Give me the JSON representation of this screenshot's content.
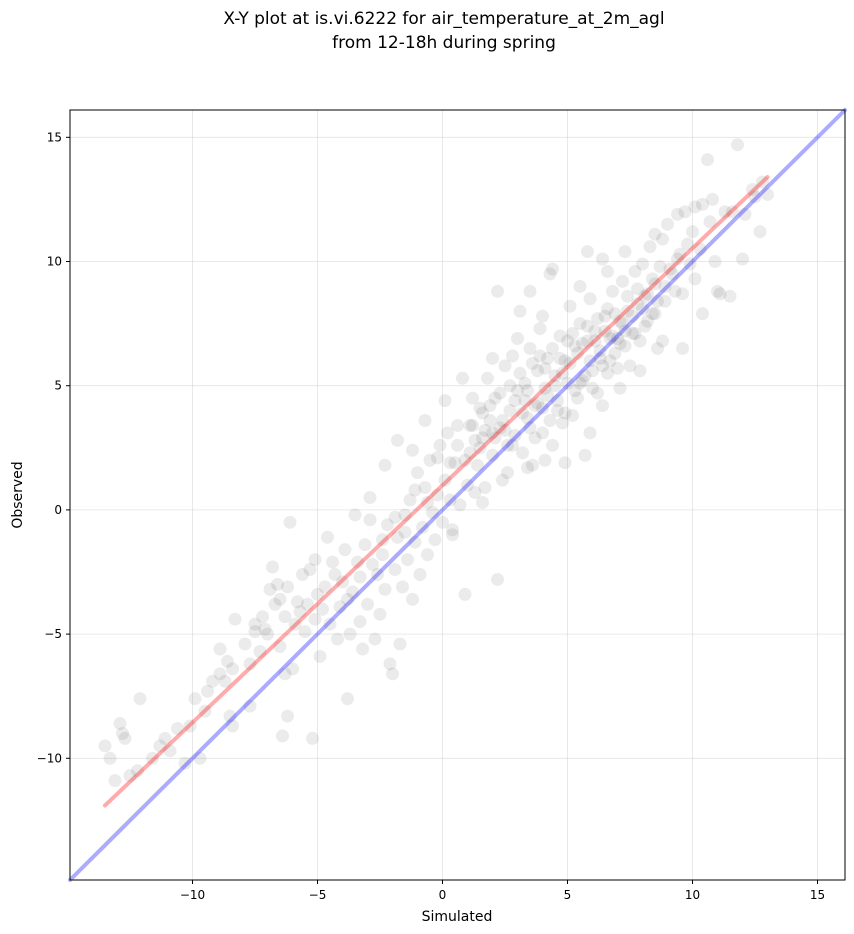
{
  "chart_data": {
    "type": "scatter",
    "title": [
      "X-Y plot at is.vi.6222 for air_temperature_at_2m_agl",
      "from 12-18h during spring"
    ],
    "xlabel": "Simulated",
    "ylabel": "Observed",
    "xlim": [
      -14.9,
      16.1
    ],
    "ylim": [
      -14.9,
      16.1
    ],
    "x_ticks": [
      -10,
      -5,
      0,
      5,
      10,
      15
    ],
    "y_ticks": [
      -10,
      -5,
      0,
      5,
      10,
      15
    ],
    "x_tick_labels": [
      "−10",
      "−5",
      "0",
      "5",
      "10",
      "15"
    ],
    "y_tick_labels": [
      "−10",
      "−5",
      "0",
      "5",
      "10",
      "15"
    ],
    "grid": true,
    "marker_color": "#000000",
    "marker_opacity": 0.08,
    "one_to_one_line": {
      "color": "#0000ff",
      "opacity": 0.33,
      "from": [
        -14.9,
        -14.9
      ],
      "to": [
        16.1,
        16.1
      ]
    },
    "regression_line": {
      "color": "#ff0000",
      "opacity": 0.33,
      "from": [
        -13.5,
        -11.9
      ],
      "to": [
        13.0,
        13.4
      ]
    },
    "points": [
      [
        -13.5,
        -9.5
      ],
      [
        -13.3,
        -10.0
      ],
      [
        -13.1,
        -10.9
      ],
      [
        -12.9,
        -8.6
      ],
      [
        -12.8,
        -9.0
      ],
      [
        -12.7,
        -9.2
      ],
      [
        -12.2,
        -10.5
      ],
      [
        -12.1,
        -7.6
      ],
      [
        -11.3,
        -9.5
      ],
      [
        -11.1,
        -9.2
      ],
      [
        -10.9,
        -9.7
      ],
      [
        -10.6,
        -8.8
      ],
      [
        -10.3,
        -10.2
      ],
      [
        -10.1,
        -8.7
      ],
      [
        -9.9,
        -7.6
      ],
      [
        -9.7,
        -10.0
      ],
      [
        -9.4,
        -7.3
      ],
      [
        -9.2,
        -6.9
      ],
      [
        -8.9,
        -6.6
      ],
      [
        -8.9,
        -5.6
      ],
      [
        -8.6,
        -6.1
      ],
      [
        -8.5,
        -8.3
      ],
      [
        -8.4,
        -8.7
      ],
      [
        -8.4,
        -6.4
      ],
      [
        -8.3,
        -4.4
      ],
      [
        -7.7,
        -6.2
      ],
      [
        -7.7,
        -7.9
      ],
      [
        -7.5,
        -4.6
      ],
      [
        -7.3,
        -5.7
      ],
      [
        -7.2,
        -4.3
      ],
      [
        -7.0,
        -5.0
      ],
      [
        -6.8,
        -2.3
      ],
      [
        -6.7,
        -3.8
      ],
      [
        -6.6,
        -3.0
      ],
      [
        -6.5,
        -5.5
      ],
      [
        -6.4,
        -9.1
      ],
      [
        -6.3,
        -6.6
      ],
      [
        -6.3,
        -4.3
      ],
      [
        -6.2,
        -8.3
      ],
      [
        -6.1,
        -0.5
      ],
      [
        -6.0,
        -6.4
      ],
      [
        -5.8,
        -3.7
      ],
      [
        -5.7,
        -4.1
      ],
      [
        -5.5,
        -4.9
      ],
      [
        -5.3,
        -2.4
      ],
      [
        -5.2,
        -9.2
      ],
      [
        -5.1,
        -4.4
      ],
      [
        -5.0,
        -3.4
      ],
      [
        -4.9,
        -5.9
      ],
      [
        -4.7,
        -3.1
      ],
      [
        -4.5,
        -4.6
      ],
      [
        -4.4,
        -2.1
      ],
      [
        -4.2,
        -5.2
      ],
      [
        -4.1,
        -3.9
      ],
      [
        -4.0,
        -2.9
      ],
      [
        -3.9,
        -1.6
      ],
      [
        -3.8,
        -7.6
      ],
      [
        -3.7,
        -5.0
      ],
      [
        -3.6,
        -3.3
      ],
      [
        -3.4,
        -2.1
      ],
      [
        -3.3,
        -4.5
      ],
      [
        -3.2,
        -5.6
      ],
      [
        -3.1,
        -1.4
      ],
      [
        -3.0,
        -3.8
      ],
      [
        -2.9,
        -0.4
      ],
      [
        -2.7,
        -5.2
      ],
      [
        -2.6,
        -2.6
      ],
      [
        -2.5,
        -4.2
      ],
      [
        -2.4,
        -1.8
      ],
      [
        -2.3,
        -3.2
      ],
      [
        -2.2,
        -0.6
      ],
      [
        -2.1,
        -6.2
      ],
      [
        -2.0,
        -6.6
      ],
      [
        -1.9,
        -2.4
      ],
      [
        -1.8,
        -1.1
      ],
      [
        -1.7,
        -5.4
      ],
      [
        -1.6,
        -3.1
      ],
      [
        -1.5,
        -0.2
      ],
      [
        -1.4,
        -2.0
      ],
      [
        -1.3,
        0.4
      ],
      [
        -1.2,
        -3.6
      ],
      [
        -1.1,
        -1.3
      ],
      [
        -1.0,
        1.5
      ],
      [
        -0.9,
        -2.6
      ],
      [
        -0.8,
        -0.7
      ],
      [
        -0.7,
        0.9
      ],
      [
        -0.6,
        -1.8
      ],
      [
        -0.5,
        2.0
      ],
      [
        -0.4,
        -0.1
      ],
      [
        -0.3,
        -1.2
      ],
      [
        -0.2,
        0.6
      ],
      [
        -0.1,
        2.6
      ],
      [
        0.0,
        -0.5
      ],
      [
        0.1,
        1.2
      ],
      [
        0.2,
        3.1
      ],
      [
        0.3,
        0.4
      ],
      [
        0.4,
        -1.0
      ],
      [
        0.5,
        1.9
      ],
      [
        0.6,
        2.6
      ],
      [
        0.7,
        0.2
      ],
      [
        0.8,
        5.3
      ],
      [
        0.9,
        -3.4
      ],
      [
        1.0,
        1.0
      ],
      [
        1.1,
        2.3
      ],
      [
        1.2,
        3.4
      ],
      [
        1.3,
        0.7
      ],
      [
        1.4,
        1.8
      ],
      [
        1.5,
        4.1
      ],
      [
        1.6,
        2.9
      ],
      [
        1.7,
        0.9
      ],
      [
        1.8,
        5.3
      ],
      [
        1.9,
        3.6
      ],
      [
        2.0,
        2.2
      ],
      [
        2.1,
        4.5
      ],
      [
        2.2,
        -2.8
      ],
      [
        2.3,
        3.3
      ],
      [
        2.4,
        1.2
      ],
      [
        2.5,
        5.8
      ],
      [
        2.6,
        2.6
      ],
      [
        2.7,
        4.0
      ],
      [
        2.8,
        6.2
      ],
      [
        2.9,
        3.0
      ],
      [
        3.0,
        4.8
      ],
      [
        3.1,
        8.0
      ],
      [
        3.2,
        2.3
      ],
      [
        3.3,
        5.1
      ],
      [
        3.4,
        3.7
      ],
      [
        3.5,
        6.5
      ],
      [
        3.6,
        1.8
      ],
      [
        3.7,
        4.2
      ],
      [
        3.8,
        5.6
      ],
      [
        3.9,
        7.3
      ],
      [
        4.0,
        3.1
      ],
      [
        4.1,
        4.9
      ],
      [
        4.2,
        6.1
      ],
      [
        4.3,
        9.5
      ],
      [
        4.4,
        2.6
      ],
      [
        4.5,
        5.4
      ],
      [
        4.6,
        4.0
      ],
      [
        4.7,
        7.0
      ],
      [
        4.8,
        3.5
      ],
      [
        4.9,
        6.0
      ],
      [
        5.0,
        5.1
      ],
      [
        5.1,
        8.2
      ],
      [
        5.2,
        3.8
      ],
      [
        5.3,
        6.6
      ],
      [
        5.4,
        4.5
      ],
      [
        5.5,
        7.5
      ],
      [
        5.6,
        5.2
      ],
      [
        5.7,
        2.2
      ],
      [
        5.8,
        6.8
      ],
      [
        5.9,
        8.5
      ],
      [
        6.0,
        5.6
      ],
      [
        6.1,
        7.2
      ],
      [
        6.2,
        4.7
      ],
      [
        6.3,
        6.1
      ],
      [
        6.4,
        10.1
      ],
      [
        6.5,
        7.8
      ],
      [
        6.6,
        5.5
      ],
      [
        6.7,
        6.9
      ],
      [
        6.8,
        8.8
      ],
      [
        6.9,
        6.3
      ],
      [
        7.0,
        5.7
      ],
      [
        7.1,
        7.6
      ],
      [
        7.2,
        9.2
      ],
      [
        7.3,
        6.6
      ],
      [
        7.4,
        8.0
      ],
      [
        7.5,
        5.8
      ],
      [
        7.6,
        7.1
      ],
      [
        7.7,
        9.6
      ],
      [
        7.8,
        8.3
      ],
      [
        7.9,
        6.8
      ],
      [
        8.0,
        9.9
      ],
      [
        8.1,
        7.4
      ],
      [
        8.2,
        8.7
      ],
      [
        8.3,
        10.6
      ],
      [
        8.4,
        7.9
      ],
      [
        8.5,
        9.1
      ],
      [
        8.6,
        6.5
      ],
      [
        8.7,
        9.8
      ],
      [
        8.8,
        10.9
      ],
      [
        8.9,
        8.4
      ],
      [
        9.0,
        11.5
      ],
      [
        9.2,
        9.5
      ],
      [
        9.4,
        10.1
      ],
      [
        9.6,
        8.7
      ],
      [
        9.7,
        12.0
      ],
      [
        9.8,
        10.7
      ],
      [
        10.0,
        11.2
      ],
      [
        10.1,
        9.3
      ],
      [
        10.3,
        10.5
      ],
      [
        10.4,
        12.3
      ],
      [
        10.6,
        14.1
      ],
      [
        10.7,
        11.6
      ],
      [
        10.9,
        10.0
      ],
      [
        11.1,
        8.7
      ],
      [
        11.3,
        12.0
      ],
      [
        11.5,
        8.6
      ],
      [
        11.8,
        14.7
      ],
      [
        12.1,
        11.9
      ],
      [
        12.5,
        12.6
      ],
      [
        12.8,
        13.2
      ],
      [
        13.0,
        12.7
      ],
      [
        1.1,
        3.4
      ],
      [
        1.3,
        2.8
      ],
      [
        1.6,
        3.9
      ],
      [
        1.9,
        4.2
      ],
      [
        2.0,
        3.1
      ],
      [
        2.3,
        4.7
      ],
      [
        2.4,
        3.6
      ],
      [
        2.7,
        5.0
      ],
      [
        2.9,
        4.4
      ],
      [
        3.1,
        5.5
      ],
      [
        3.2,
        3.9
      ],
      [
        3.4,
        4.8
      ],
      [
        3.6,
        5.9
      ],
      [
        3.8,
        4.3
      ],
      [
        3.9,
        6.2
      ],
      [
        4.1,
        5.7
      ],
      [
        4.2,
        4.6
      ],
      [
        4.4,
        6.5
      ],
      [
        4.5,
        5.0
      ],
      [
        4.7,
        6.1
      ],
      [
        4.8,
        5.5
      ],
      [
        5.0,
        6.8
      ],
      [
        5.1,
        5.9
      ],
      [
        5.2,
        7.1
      ],
      [
        5.4,
        6.3
      ],
      [
        5.5,
        5.1
      ],
      [
        5.6,
        6.7
      ],
      [
        5.8,
        7.4
      ],
      [
        5.9,
        6.0
      ],
      [
        6.1,
        6.8
      ],
      [
        6.2,
        7.7
      ],
      [
        6.3,
        6.4
      ],
      [
        6.5,
        7.2
      ],
      [
        6.6,
        8.1
      ],
      [
        6.8,
        7.0
      ],
      [
        6.9,
        7.9
      ],
      [
        7.1,
        6.7
      ],
      [
        7.2,
        7.5
      ],
      [
        7.4,
        8.6
      ],
      [
        7.6,
        7.8
      ],
      [
        7.8,
        8.9
      ],
      [
        8.0,
        8.1
      ],
      [
        8.2,
        7.6
      ],
      [
        8.4,
        9.3
      ],
      [
        8.6,
        8.4
      ],
      [
        8.9,
        9.0
      ],
      [
        9.1,
        9.7
      ],
      [
        9.3,
        8.8
      ],
      [
        9.5,
        10.3
      ],
      [
        9.9,
        9.9
      ],
      [
        0.3,
        1.9
      ],
      [
        0.6,
        3.4
      ],
      [
        0.9,
        2.0
      ],
      [
        1.2,
        4.5
      ],
      [
        1.5,
        2.5
      ],
      [
        1.7,
        3.2
      ],
      [
        2.1,
        2.9
      ],
      [
        2.5,
        3.2
      ],
      [
        2.8,
        2.6
      ],
      [
        3.3,
        4.4
      ],
      [
        3.5,
        3.3
      ],
      [
        3.7,
        2.9
      ],
      [
        4.0,
        4.1
      ],
      [
        4.3,
        3.6
      ],
      [
        4.6,
        4.4
      ],
      [
        4.9,
        3.9
      ],
      [
        5.3,
        4.8
      ],
      [
        5.7,
        5.4
      ],
      [
        6.0,
        4.9
      ],
      [
        6.4,
        5.8
      ],
      [
        6.7,
        6.0
      ],
      [
        7.0,
        6.9
      ],
      [
        7.3,
        7.2
      ],
      [
        7.7,
        7.1
      ],
      [
        8.1,
        8.6
      ],
      [
        8.5,
        7.9
      ],
      [
        -0.2,
        2.1
      ],
      [
        -0.6,
        0.3
      ],
      [
        -1.1,
        0.8
      ],
      [
        -1.5,
        -0.9
      ],
      [
        -1.9,
        -0.3
      ],
      [
        -2.4,
        -1.2
      ],
      [
        -2.8,
        -2.2
      ],
      [
        -3.3,
        -2.7
      ],
      [
        -3.8,
        -3.6
      ],
      [
        -4.3,
        -2.6
      ],
      [
        -4.8,
        -4.0
      ],
      [
        -5.4,
        -3.8
      ],
      [
        -5.9,
        -4.6
      ],
      [
        -6.5,
        -3.6
      ],
      [
        -7.1,
        -4.8
      ],
      [
        -7.9,
        -5.4
      ],
      [
        -8.7,
        -6.9
      ],
      [
        -9.5,
        -8.1
      ],
      [
        -11.6,
        -10.0
      ],
      [
        -12.5,
        -10.7
      ],
      [
        2.0,
        6.1
      ],
      [
        3.0,
        6.9
      ],
      [
        4.0,
        7.8
      ],
      [
        5.5,
        9.0
      ],
      [
        6.6,
        9.6
      ],
      [
        3.5,
        8.8
      ],
      [
        2.2,
        8.8
      ],
      [
        4.4,
        9.7
      ],
      [
        5.8,
        10.4
      ],
      [
        7.3,
        10.4
      ],
      [
        8.5,
        11.1
      ],
      [
        9.4,
        11.9
      ],
      [
        10.1,
        12.2
      ],
      [
        10.8,
        12.5
      ],
      [
        11.6,
        12.0
      ],
      [
        12.4,
        12.9
      ],
      [
        0.4,
        -0.8
      ],
      [
        1.6,
        0.3
      ],
      [
        2.6,
        1.5
      ],
      [
        3.4,
        1.7
      ],
      [
        4.1,
        2.0
      ],
      [
        4.9,
        1.9
      ],
      [
        5.9,
        3.1
      ],
      [
        6.4,
        4.2
      ],
      [
        7.1,
        4.9
      ],
      [
        7.9,
        5.6
      ],
      [
        8.8,
        6.8
      ],
      [
        9.6,
        6.5
      ],
      [
        10.4,
        7.9
      ],
      [
        11.0,
        8.8
      ],
      [
        12.0,
        10.1
      ],
      [
        12.7,
        11.2
      ],
      [
        -3.5,
        -0.2
      ],
      [
        -2.9,
        0.5
      ],
      [
        -2.3,
        1.8
      ],
      [
        -1.8,
        2.8
      ],
      [
        -1.2,
        2.4
      ],
      [
        -0.7,
        3.6
      ],
      [
        0.1,
        4.4
      ],
      [
        -4.6,
        -1.1
      ],
      [
        -5.1,
        -2.0
      ],
      [
        -5.6,
        -2.6
      ],
      [
        -6.2,
        -3.1
      ],
      [
        -6.9,
        -3.2
      ],
      [
        -7.5,
        -4.9
      ]
    ]
  }
}
